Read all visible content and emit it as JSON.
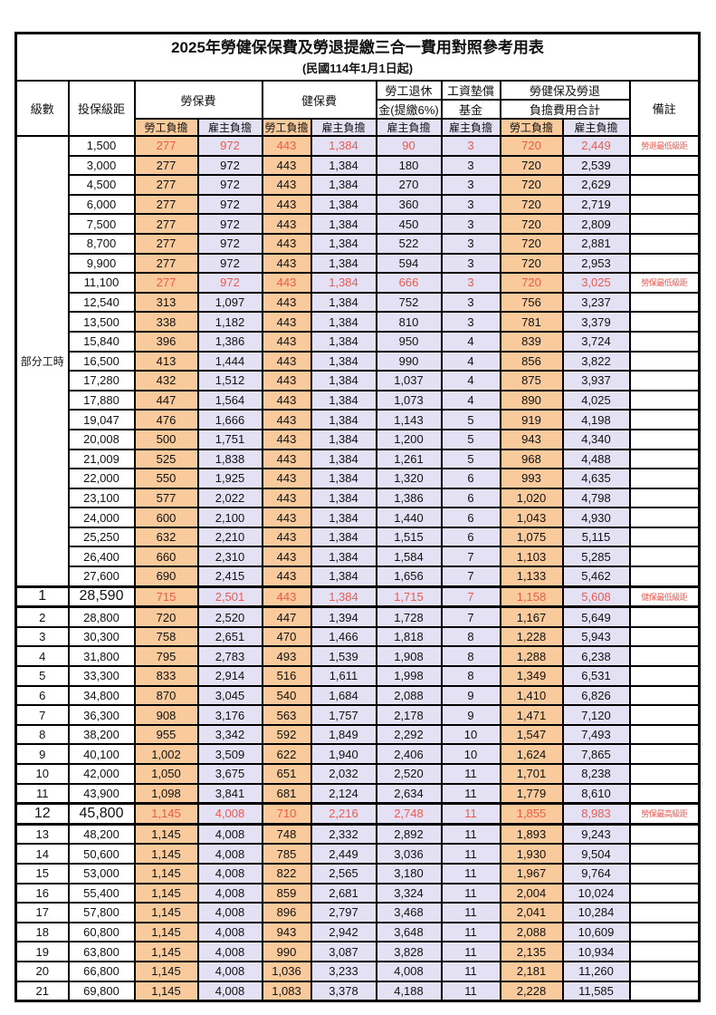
{
  "title": "2025年勞健保保費及勞退提繳三合一費用對照參考用表",
  "subtitle": "(民國114年1月1日起)",
  "columns": {
    "level": "級數",
    "bracket": "投保級距",
    "labor_insurance": "勞保費",
    "health_insurance": "健保費",
    "pension_line1": "勞工退休",
    "pension_line2": "金(提繳6%)",
    "fund_line1": "工資墊償",
    "fund_line2": "基金",
    "total_line1": "勞健保及勞退",
    "total_line2": "負擔費用合計",
    "remark": "備註",
    "employee_share": "勞工負擔",
    "employer_share": "雇主負擔"
  },
  "colors": {
    "employee_bg": "#F8CA9C",
    "employer_bg": "#E3E1F3",
    "highlight_red": "#EE5A50",
    "grid": "#000000"
  },
  "part_time": {
    "label": "部分工時",
    "span": 23
  },
  "value_column_shares": [
    "employee",
    "employer",
    "employee",
    "employer",
    "employer",
    "employer",
    "employee",
    "employer"
  ],
  "rows": [
    {
      "level": "",
      "salary": "1,500",
      "values": [
        "277",
        "972",
        "443",
        "1,384",
        "90",
        "3",
        "720",
        "2,449"
      ],
      "remark": "勞退最低級距",
      "red": true,
      "emphasis": false
    },
    {
      "level": "",
      "salary": "3,000",
      "values": [
        "277",
        "972",
        "443",
        "1,384",
        "180",
        "3",
        "720",
        "2,539"
      ],
      "remark": "",
      "red": false,
      "emphasis": false
    },
    {
      "level": "",
      "salary": "4,500",
      "values": [
        "277",
        "972",
        "443",
        "1,384",
        "270",
        "3",
        "720",
        "2,629"
      ],
      "remark": "",
      "red": false,
      "emphasis": false
    },
    {
      "level": "",
      "salary": "6,000",
      "values": [
        "277",
        "972",
        "443",
        "1,384",
        "360",
        "3",
        "720",
        "2,719"
      ],
      "remark": "",
      "red": false,
      "emphasis": false
    },
    {
      "level": "",
      "salary": "7,500",
      "values": [
        "277",
        "972",
        "443",
        "1,384",
        "450",
        "3",
        "720",
        "2,809"
      ],
      "remark": "",
      "red": false,
      "emphasis": false
    },
    {
      "level": "",
      "salary": "8,700",
      "values": [
        "277",
        "972",
        "443",
        "1,384",
        "522",
        "3",
        "720",
        "2,881"
      ],
      "remark": "",
      "red": false,
      "emphasis": false
    },
    {
      "level": "",
      "salary": "9,900",
      "values": [
        "277",
        "972",
        "443",
        "1,384",
        "594",
        "3",
        "720",
        "2,953"
      ],
      "remark": "",
      "red": false,
      "emphasis": false
    },
    {
      "level": "",
      "salary": "11,100",
      "values": [
        "277",
        "972",
        "443",
        "1,384",
        "666",
        "3",
        "720",
        "3,025"
      ],
      "remark": "勞保最低級距",
      "red": true,
      "emphasis": false
    },
    {
      "level": "",
      "salary": "12,540",
      "values": [
        "313",
        "1,097",
        "443",
        "1,384",
        "752",
        "3",
        "756",
        "3,237"
      ],
      "remark": "",
      "red": false,
      "emphasis": false
    },
    {
      "level": "",
      "salary": "13,500",
      "values": [
        "338",
        "1,182",
        "443",
        "1,384",
        "810",
        "3",
        "781",
        "3,379"
      ],
      "remark": "",
      "red": false,
      "emphasis": false
    },
    {
      "level": "",
      "salary": "15,840",
      "values": [
        "396",
        "1,386",
        "443",
        "1,384",
        "950",
        "4",
        "839",
        "3,724"
      ],
      "remark": "",
      "red": false,
      "emphasis": false
    },
    {
      "level": "",
      "salary": "16,500",
      "values": [
        "413",
        "1,444",
        "443",
        "1,384",
        "990",
        "4",
        "856",
        "3,822"
      ],
      "remark": "",
      "red": false,
      "emphasis": false
    },
    {
      "level": "",
      "salary": "17,280",
      "values": [
        "432",
        "1,512",
        "443",
        "1,384",
        "1,037",
        "4",
        "875",
        "3,937"
      ],
      "remark": "",
      "red": false,
      "emphasis": false
    },
    {
      "level": "",
      "salary": "17,880",
      "values": [
        "447",
        "1,564",
        "443",
        "1,384",
        "1,073",
        "4",
        "890",
        "4,025"
      ],
      "remark": "",
      "red": false,
      "emphasis": false
    },
    {
      "level": "",
      "salary": "19,047",
      "values": [
        "476",
        "1,666",
        "443",
        "1,384",
        "1,143",
        "5",
        "919",
        "4,198"
      ],
      "remark": "",
      "red": false,
      "emphasis": false
    },
    {
      "level": "",
      "salary": "20,008",
      "values": [
        "500",
        "1,751",
        "443",
        "1,384",
        "1,200",
        "5",
        "943",
        "4,340"
      ],
      "remark": "",
      "red": false,
      "emphasis": false
    },
    {
      "level": "",
      "salary": "21,009",
      "values": [
        "525",
        "1,838",
        "443",
        "1,384",
        "1,261",
        "5",
        "968",
        "4,488"
      ],
      "remark": "",
      "red": false,
      "emphasis": false
    },
    {
      "level": "",
      "salary": "22,000",
      "values": [
        "550",
        "1,925",
        "443",
        "1,384",
        "1,320",
        "6",
        "993",
        "4,635"
      ],
      "remark": "",
      "red": false,
      "emphasis": false
    },
    {
      "level": "",
      "salary": "23,100",
      "values": [
        "577",
        "2,022",
        "443",
        "1,384",
        "1,386",
        "6",
        "1,020",
        "4,798"
      ],
      "remark": "",
      "red": false,
      "emphasis": false
    },
    {
      "level": "",
      "salary": "24,000",
      "values": [
        "600",
        "2,100",
        "443",
        "1,384",
        "1,440",
        "6",
        "1,043",
        "4,930"
      ],
      "remark": "",
      "red": false,
      "emphasis": false
    },
    {
      "level": "",
      "salary": "25,250",
      "values": [
        "632",
        "2,210",
        "443",
        "1,384",
        "1,515",
        "6",
        "1,075",
        "5,115"
      ],
      "remark": "",
      "red": false,
      "emphasis": false
    },
    {
      "level": "",
      "salary": "26,400",
      "values": [
        "660",
        "2,310",
        "443",
        "1,384",
        "1,584",
        "7",
        "1,103",
        "5,285"
      ],
      "remark": "",
      "red": false,
      "emphasis": false
    },
    {
      "level": "",
      "salary": "27,600",
      "values": [
        "690",
        "2,415",
        "443",
        "1,384",
        "1,656",
        "7",
        "1,133",
        "5,462"
      ],
      "remark": "",
      "red": false,
      "emphasis": false
    },
    {
      "level": "1",
      "salary": "28,590",
      "values": [
        "715",
        "2,501",
        "443",
        "1,384",
        "1,715",
        "7",
        "1,158",
        "5,608"
      ],
      "remark": "健保最低級距",
      "red": true,
      "emphasis": true
    },
    {
      "level": "2",
      "salary": "28,800",
      "values": [
        "720",
        "2,520",
        "447",
        "1,394",
        "1,728",
        "7",
        "1,167",
        "5,649"
      ],
      "remark": "",
      "red": false,
      "emphasis": false
    },
    {
      "level": "3",
      "salary": "30,300",
      "values": [
        "758",
        "2,651",
        "470",
        "1,466",
        "1,818",
        "8",
        "1,228",
        "5,943"
      ],
      "remark": "",
      "red": false,
      "emphasis": false
    },
    {
      "level": "4",
      "salary": "31,800",
      "values": [
        "795",
        "2,783",
        "493",
        "1,539",
        "1,908",
        "8",
        "1,288",
        "6,238"
      ],
      "remark": "",
      "red": false,
      "emphasis": false
    },
    {
      "level": "5",
      "salary": "33,300",
      "values": [
        "833",
        "2,914",
        "516",
        "1,611",
        "1,998",
        "8",
        "1,349",
        "6,531"
      ],
      "remark": "",
      "red": false,
      "emphasis": false
    },
    {
      "level": "6",
      "salary": "34,800",
      "values": [
        "870",
        "3,045",
        "540",
        "1,684",
        "2,088",
        "9",
        "1,410",
        "6,826"
      ],
      "remark": "",
      "red": false,
      "emphasis": false
    },
    {
      "level": "7",
      "salary": "36,300",
      "values": [
        "908",
        "3,176",
        "563",
        "1,757",
        "2,178",
        "9",
        "1,471",
        "7,120"
      ],
      "remark": "",
      "red": false,
      "emphasis": false
    },
    {
      "level": "8",
      "salary": "38,200",
      "values": [
        "955",
        "3,342",
        "592",
        "1,849",
        "2,292",
        "10",
        "1,547",
        "7,493"
      ],
      "remark": "",
      "red": false,
      "emphasis": false
    },
    {
      "level": "9",
      "salary": "40,100",
      "values": [
        "1,002",
        "3,509",
        "622",
        "1,940",
        "2,406",
        "10",
        "1,624",
        "7,865"
      ],
      "remark": "",
      "red": false,
      "emphasis": false
    },
    {
      "level": "10",
      "salary": "42,000",
      "values": [
        "1,050",
        "3,675",
        "651",
        "2,032",
        "2,520",
        "11",
        "1,701",
        "8,238"
      ],
      "remark": "",
      "red": false,
      "emphasis": false
    },
    {
      "level": "11",
      "salary": "43,900",
      "values": [
        "1,098",
        "3,841",
        "681",
        "2,124",
        "2,634",
        "11",
        "1,779",
        "8,610"
      ],
      "remark": "",
      "red": false,
      "emphasis": false
    },
    {
      "level": "12",
      "salary": "45,800",
      "values": [
        "1,145",
        "4,008",
        "710",
        "2,216",
        "2,748",
        "11",
        "1,855",
        "8,983"
      ],
      "remark": "勞保最高級距",
      "red": true,
      "emphasis": true
    },
    {
      "level": "13",
      "salary": "48,200",
      "values": [
        "1,145",
        "4,008",
        "748",
        "2,332",
        "2,892",
        "11",
        "1,893",
        "9,243"
      ],
      "remark": "",
      "red": false,
      "emphasis": false
    },
    {
      "level": "14",
      "salary": "50,600",
      "values": [
        "1,145",
        "4,008",
        "785",
        "2,449",
        "3,036",
        "11",
        "1,930",
        "9,504"
      ],
      "remark": "",
      "red": false,
      "emphasis": false
    },
    {
      "level": "15",
      "salary": "53,000",
      "values": [
        "1,145",
        "4,008",
        "822",
        "2,565",
        "3,180",
        "11",
        "1,967",
        "9,764"
      ],
      "remark": "",
      "red": false,
      "emphasis": false
    },
    {
      "level": "16",
      "salary": "55,400",
      "values": [
        "1,145",
        "4,008",
        "859",
        "2,681",
        "3,324",
        "11",
        "2,004",
        "10,024"
      ],
      "remark": "",
      "red": false,
      "emphasis": false
    },
    {
      "level": "17",
      "salary": "57,800",
      "values": [
        "1,145",
        "4,008",
        "896",
        "2,797",
        "3,468",
        "11",
        "2,041",
        "10,284"
      ],
      "remark": "",
      "red": false,
      "emphasis": false
    },
    {
      "level": "18",
      "salary": "60,800",
      "values": [
        "1,145",
        "4,008",
        "943",
        "2,942",
        "3,648",
        "11",
        "2,088",
        "10,609"
      ],
      "remark": "",
      "red": false,
      "emphasis": false
    },
    {
      "level": "19",
      "salary": "63,800",
      "values": [
        "1,145",
        "4,008",
        "990",
        "3,087",
        "3,828",
        "11",
        "2,135",
        "10,934"
      ],
      "remark": "",
      "red": false,
      "emphasis": false
    },
    {
      "level": "20",
      "salary": "66,800",
      "values": [
        "1,145",
        "4,008",
        "1,036",
        "3,233",
        "4,008",
        "11",
        "2,181",
        "11,260"
      ],
      "remark": "",
      "red": false,
      "emphasis": false
    },
    {
      "level": "21",
      "salary": "69,800",
      "values": [
        "1,145",
        "4,008",
        "1,083",
        "3,378",
        "4,188",
        "11",
        "2,228",
        "11,585"
      ],
      "remark": "",
      "red": false,
      "emphasis": false
    }
  ]
}
